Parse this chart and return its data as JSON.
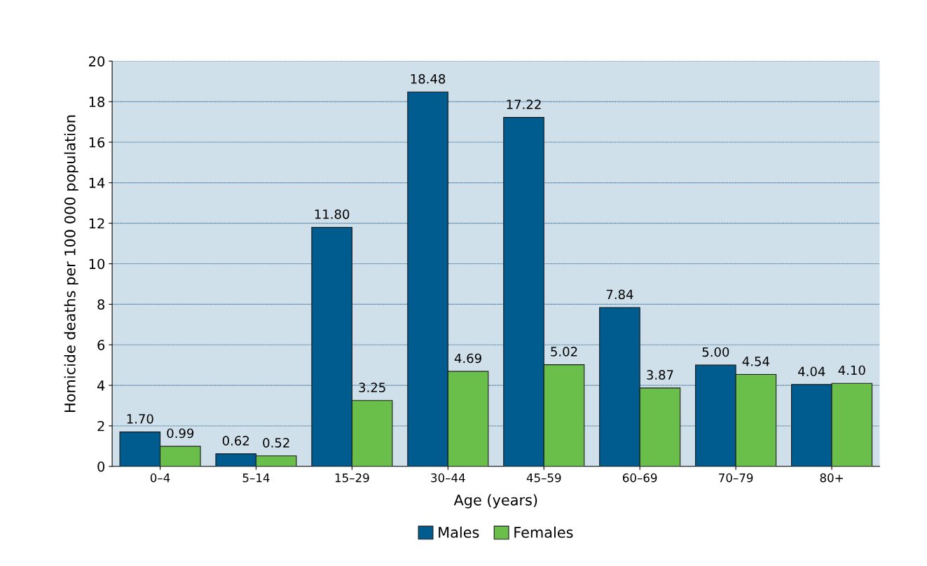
{
  "chart_data": {
    "type": "bar",
    "xlabel": "Age (years)",
    "ylabel": "Homicide deaths per 100 000 population",
    "categories": [
      "0–4",
      "5–14",
      "15–29",
      "30–44",
      "45–59",
      "60–69",
      "70–79",
      "80+"
    ],
    "series": [
      {
        "name": "Males",
        "color": "#005b8f",
        "values": [
          1.7,
          0.62,
          11.8,
          18.48,
          17.22,
          7.84,
          5.0,
          4.04
        ],
        "value_labels": [
          "1.70",
          "0.62",
          "11.80",
          "18.48",
          "17.22",
          "7.84",
          "5.00",
          "4.04"
        ]
      },
      {
        "name": "Females",
        "color": "#6abf4b",
        "values": [
          0.99,
          0.52,
          3.25,
          4.69,
          5.02,
          3.87,
          4.54,
          4.1
        ],
        "value_labels": [
          "0.99",
          "0.52",
          "3.25",
          "4.69",
          "5.02",
          "3.87",
          "4.54",
          "4.10"
        ]
      }
    ],
    "ylim": [
      0,
      20
    ],
    "yticks": [
      0,
      2,
      4,
      6,
      8,
      10,
      12,
      14,
      16,
      18,
      20
    ],
    "grid": "y",
    "legend": "bottom"
  }
}
